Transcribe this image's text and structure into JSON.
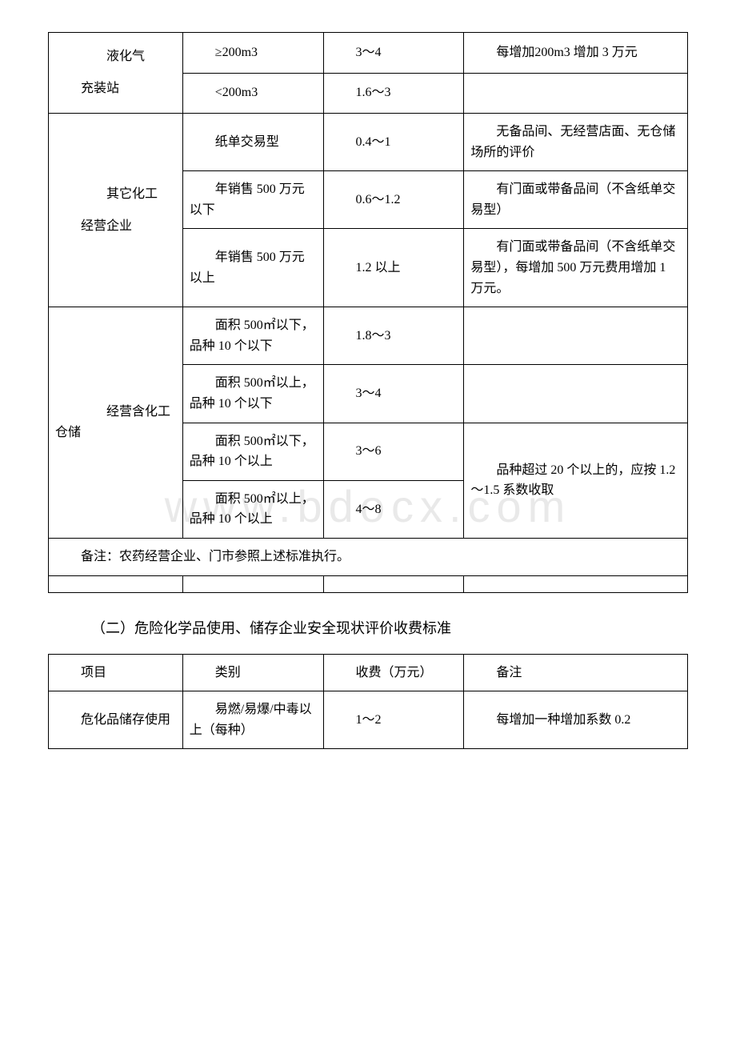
{
  "table1": {
    "rows": [
      {
        "category": "液化气\n充装站",
        "rowspan": 2,
        "cells": [
          {
            "spec": "≥200m3",
            "fee": "3～4",
            "note": "每增加200m3 增加 3 万元"
          },
          {
            "spec": "<200m3",
            "fee": "1.6～3",
            "note": ""
          }
        ]
      },
      {
        "category": "其它化工\n经营企业",
        "rowspan": 3,
        "cells": [
          {
            "spec": "纸单交易型",
            "fee": "0.4～1",
            "note": "无备品间、无经营店面、无仓储场所的评价"
          },
          {
            "spec": "年销售 500 万元以下",
            "fee": "0.6～1.2",
            "note": "有门面或带备品间（不含纸单交易型）"
          },
          {
            "spec": "年销售 500 万元以上",
            "fee": "1.2 以上",
            "note": "有门面或带备品间（不含纸单交易型），每增加 500 万元费用增加 1 万元。"
          }
        ]
      },
      {
        "category": "经营含化工仓储",
        "rowspan": 4,
        "cells": [
          {
            "spec": "面积 500㎡以下，品种 10 个以下",
            "fee": "1.8～3",
            "note": ""
          },
          {
            "spec": "面积 500㎡以上，品种 10 个以下",
            "fee": "3～4",
            "note": ""
          },
          {
            "spec": "面积 500㎡以下，品种 10 个以上",
            "fee": "3～6",
            "note": "品种超过 20 个以上的，应按 1.2～1.5 系数收取",
            "note_rowspan": 2
          },
          {
            "spec": "面积 500㎡以上，品种 10 个以上",
            "fee": "4～8"
          }
        ]
      }
    ],
    "footnote": "备注：农药经营企业、门市参照上述标准执行。"
  },
  "section2_title": "（二）危险化学品使用、储存企业安全现状评价收费标准",
  "table2": {
    "header": {
      "col1": "项目",
      "col2": "类别",
      "col3": "收费（万元）",
      "col4": "备注"
    },
    "row1": {
      "col1": "危化品储存使用",
      "col2": "易燃/易爆/中毒以上（每种）",
      "col3": "1～2",
      "col4": "每增加一种增加系数 0.2"
    }
  },
  "styles": {
    "border_color": "#000000",
    "text_color": "#000000",
    "background_color": "#ffffff",
    "font_family": "SimSun",
    "base_font_size": 16,
    "title_font_size": 18,
    "watermark_text": "www.bdocx.com",
    "watermark_color": "rgba(200, 200, 200, 0.4)"
  }
}
